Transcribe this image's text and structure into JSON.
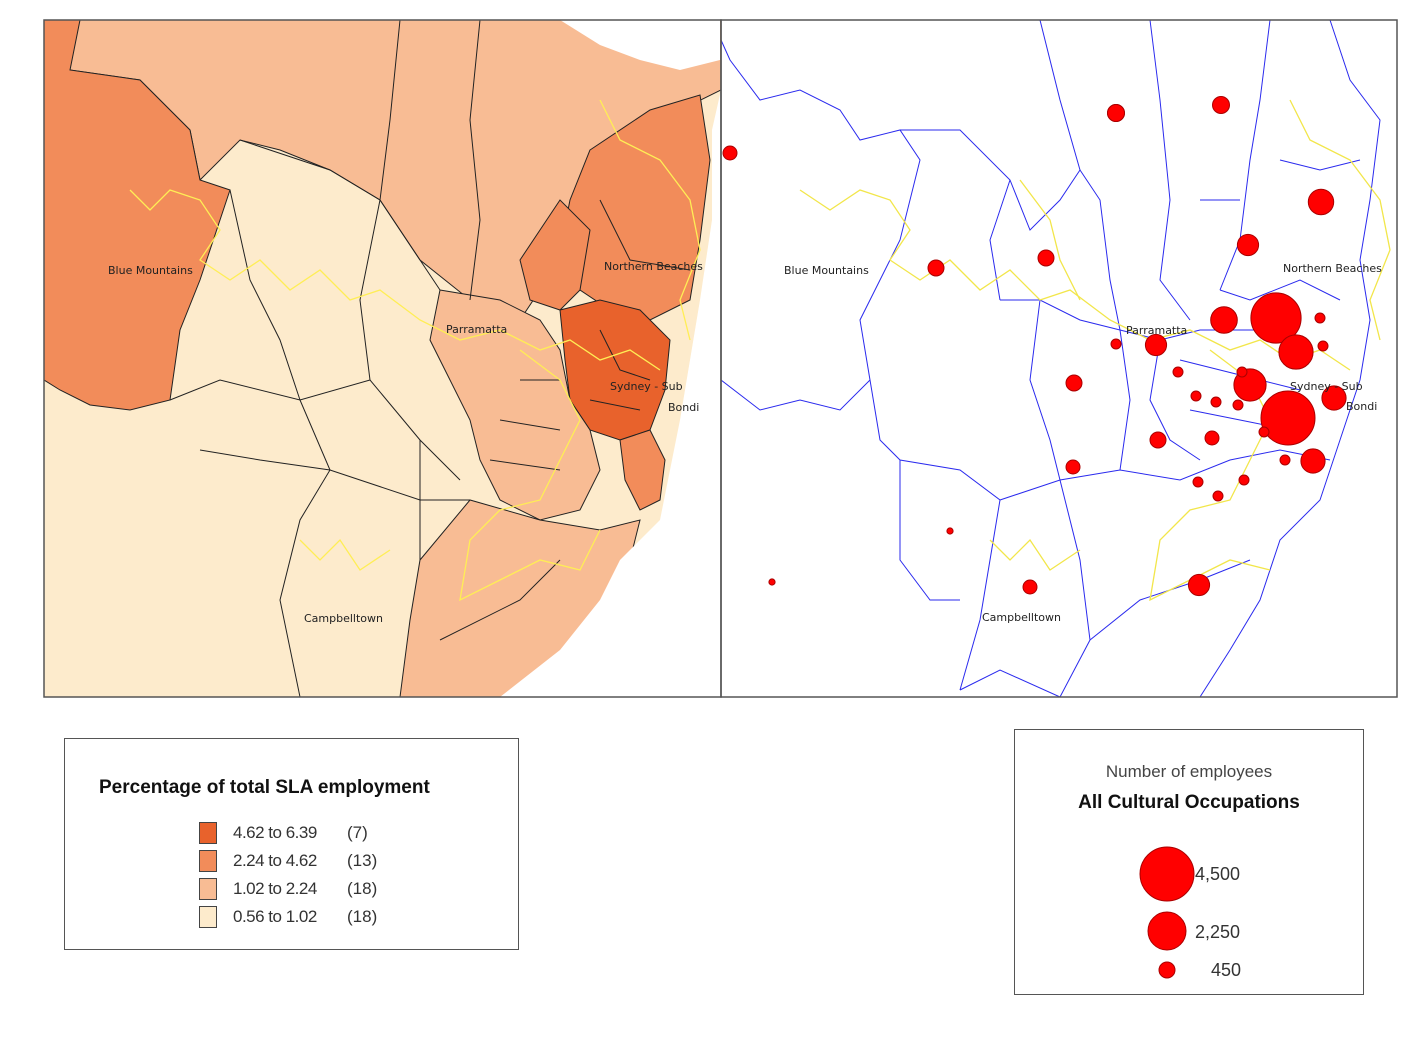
{
  "left_map": {
    "colors": {
      "class1": "#e8622c",
      "class2": "#f28c5a",
      "class3": "#f8bc94",
      "class4": "#fdebcc",
      "coastline": "#ffee55",
      "boundary": "#222222"
    },
    "labels": {
      "blue_mountains": "Blue Mountains",
      "baulkham_hills": "Northern Beaches",
      "parramatta": "Parramatta",
      "sydney": "Sydney - Sub",
      "bondi": "Bondi",
      "campbelltown": "Campbelltown"
    }
  },
  "right_map": {
    "colors": {
      "boundary": "#2a2aee",
      "coastline": "#f2e64a",
      "circle": "#ff0000",
      "circle_stroke": "#aa0000"
    },
    "labels": {
      "blue_mountains": "Blue Mountains",
      "northern_beaches": "Northern Beaches",
      "parramatta": "Parramatta",
      "sydney": "Sydney - Sub",
      "bondi": "Bondi",
      "campbelltown": "Campbelltown"
    }
  },
  "choropleth_legend": {
    "title": "Percentage of total SLA employment",
    "classes": [
      {
        "range": "4.62 to 6.39",
        "count": "(7)",
        "color": "#e8622c"
      },
      {
        "range": "2.24 to 4.62",
        "count": "(13)",
        "color": "#f28c5a"
      },
      {
        "range": "1.02 to 2.24",
        "count": "(18)",
        "color": "#f8bc94"
      },
      {
        "range": "0.56 to 1.02",
        "count": "(18)",
        "color": "#fdebcc"
      }
    ]
  },
  "symbol_legend": {
    "subtitle": "Number of employees",
    "title": "All Cultural Occupations",
    "sizes": [
      {
        "value": 4500,
        "label": "4,500"
      },
      {
        "value": 2250,
        "label": "2,250"
      },
      {
        "value": 450,
        "label": "450"
      }
    ]
  },
  "employee_circles": [
    {
      "name": "north-west-1",
      "employees": 450
    },
    {
      "name": "north-1",
      "employees": 450
    },
    {
      "name": "north-2",
      "employees": 450
    },
    {
      "name": "north-east-1",
      "employees": 1000
    },
    {
      "name": "ku-ring-gai",
      "employees": 700
    },
    {
      "name": "blue-mountains",
      "employees": 400
    },
    {
      "name": "hills",
      "employees": 400
    },
    {
      "name": "ryde",
      "employees": 1100
    },
    {
      "name": "north-sydney",
      "employees": 3900
    },
    {
      "name": "sydney-city",
      "employees": 4500
    },
    {
      "name": "parramatta",
      "employees": 700
    },
    {
      "name": "leichhardt",
      "employees": 1800
    },
    {
      "name": "marrickville",
      "employees": 1600
    },
    {
      "name": "waverley",
      "employees": 900
    },
    {
      "name": "liverpool",
      "employees": 400
    },
    {
      "name": "canterbury",
      "employees": 400
    },
    {
      "name": "rockdale",
      "employees": 300
    },
    {
      "name": "sutherland",
      "employees": 700
    },
    {
      "name": "campbelltown",
      "employees": 300
    },
    {
      "name": "camden",
      "employees": 60
    },
    {
      "name": "wollondilly",
      "employees": 60
    },
    {
      "name": "hawkesbury-far",
      "employees": 300
    },
    {
      "name": "randwick",
      "employees": 900
    }
  ]
}
